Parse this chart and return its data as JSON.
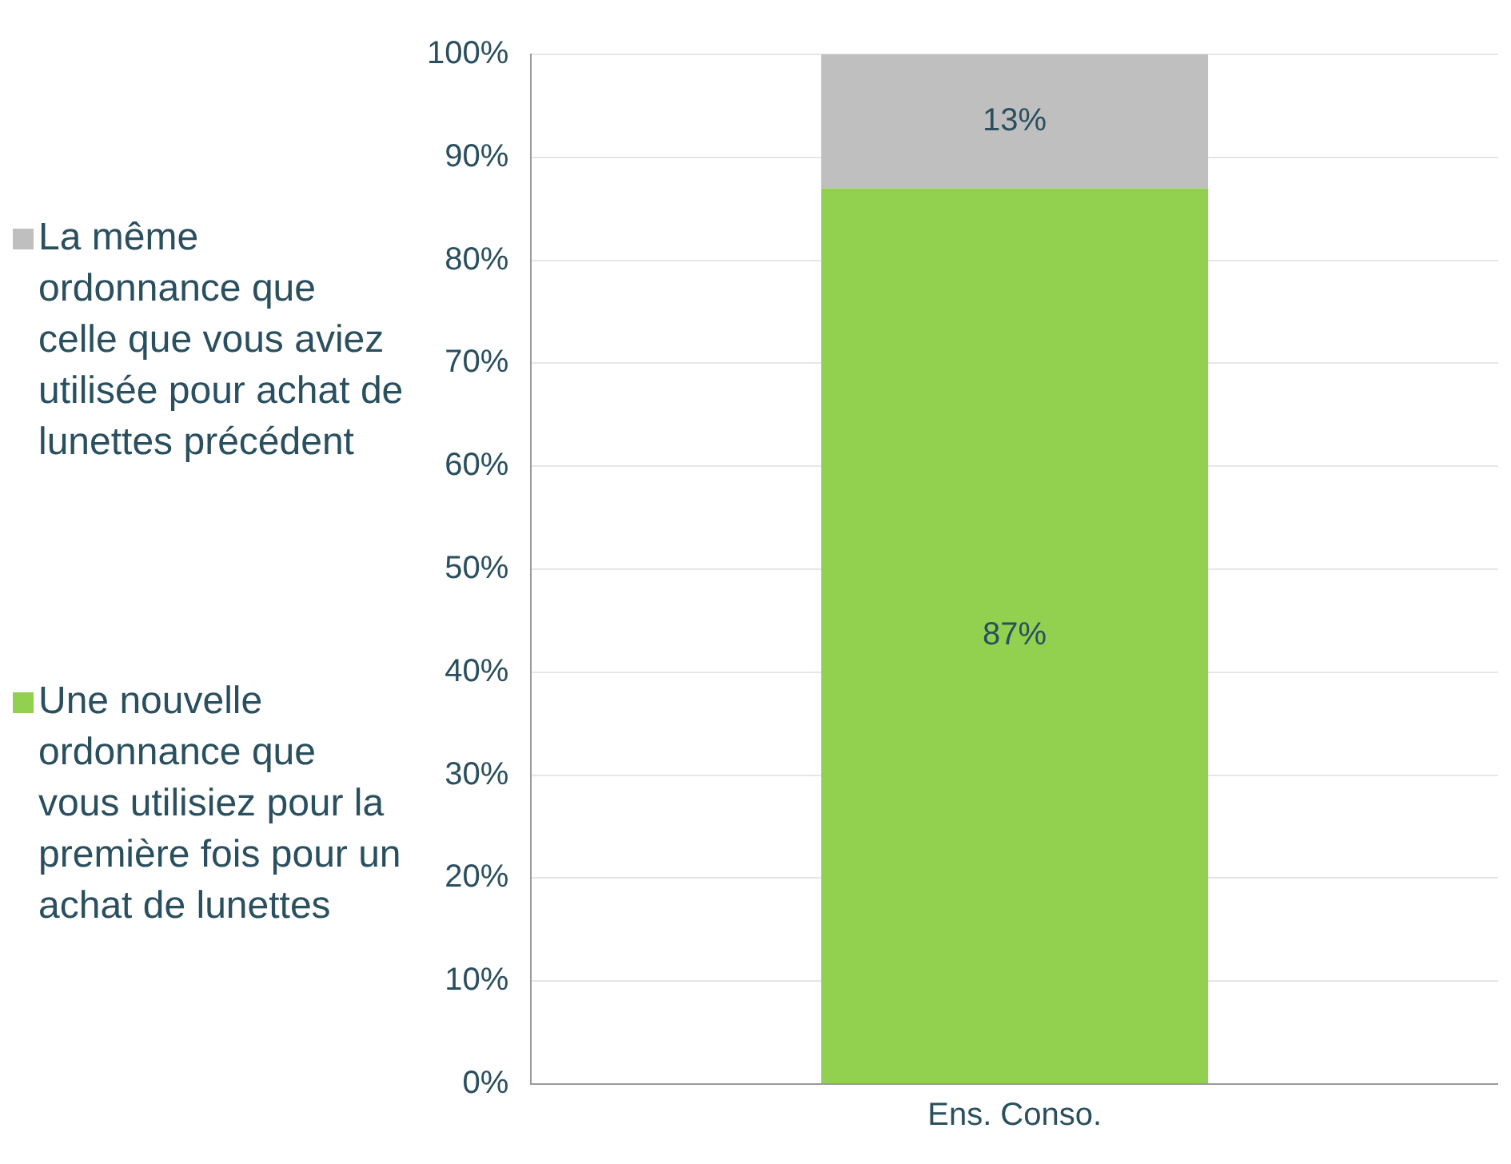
{
  "chart_data": {
    "type": "bar",
    "stacked": true,
    "categories": [
      "Ens. Conso."
    ],
    "series": [
      {
        "name": "Une nouvelle ordonnance que vous utilisiez pour la première fois pour un achat de lunettes",
        "color": "#92d050",
        "values": [
          87
        ],
        "value_labels": [
          "87%"
        ]
      },
      {
        "name": "La même ordonnance que celle que vous aviez utilisée pour achat de lunettes précédent",
        "color": "#bfbfbf",
        "values": [
          13
        ],
        "value_labels": [
          "13%"
        ]
      }
    ],
    "ylim": [
      0,
      100
    ],
    "yticks": [
      {
        "value": 0,
        "label": "0%"
      },
      {
        "value": 10,
        "label": "10%"
      },
      {
        "value": 20,
        "label": "20%"
      },
      {
        "value": 30,
        "label": "30%"
      },
      {
        "value": 40,
        "label": "40%"
      },
      {
        "value": 50,
        "label": "50%"
      },
      {
        "value": 60,
        "label": "60%"
      },
      {
        "value": 70,
        "label": "70%"
      },
      {
        "value": 80,
        "label": "80%"
      },
      {
        "value": 90,
        "label": "90%"
      },
      {
        "value": 100,
        "label": "100%"
      }
    ],
    "grid": "y",
    "legend": "left"
  }
}
